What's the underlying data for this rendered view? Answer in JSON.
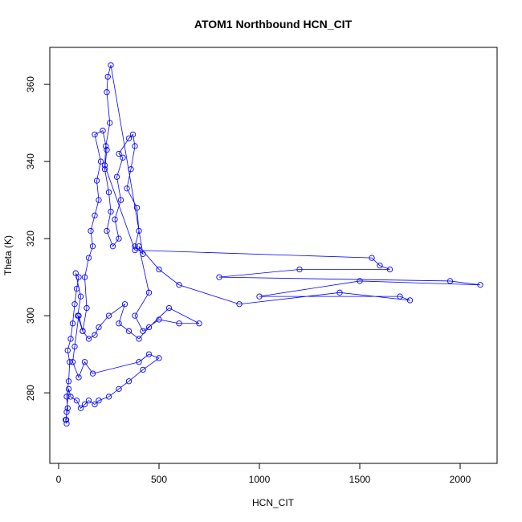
{
  "chart_data": {
    "type": "line",
    "title": "ATOM1 Northbound HCN_CIT",
    "x_label": "HCN_CIT",
    "y_label": "Theta (K)",
    "markers": "open-circle",
    "x": [
      40,
      35,
      45,
      40,
      50,
      55,
      45,
      60,
      70,
      80,
      90,
      100,
      85,
      110,
      95,
      120,
      140,
      130,
      150,
      170,
      160,
      180,
      200,
      190,
      210,
      180,
      220,
      240,
      230,
      250,
      260,
      240,
      270,
      300,
      280,
      310,
      290,
      320,
      300,
      350,
      370,
      380,
      360,
      340,
      390,
      400,
      380,
      420,
      260,
      245,
      240,
      255,
      235,
      230,
      380,
      1560,
      1600,
      1650,
      1200,
      800,
      1950,
      2100,
      1500,
      1000,
      1700,
      1750,
      1400,
      900,
      600,
      500,
      400,
      450,
      380,
      420,
      500,
      600,
      700,
      550,
      450,
      400,
      350,
      300,
      330,
      250,
      200,
      180,
      150,
      120,
      100,
      80,
      70,
      100,
      130,
      170,
      400,
      450,
      500,
      420,
      350,
      300,
      250,
      200,
      180,
      150,
      130,
      110,
      90,
      60,
      50,
      40,
      38
    ],
    "series": [
      {
        "name": "Theta",
        "color": "#0000ff",
        "values": [
          272,
          273,
          276,
          279,
          283,
          288,
          291,
          294,
          298,
          303,
          307,
          310,
          311,
          305,
          300,
          296,
          302,
          310,
          315,
          318,
          322,
          326,
          330,
          335,
          340,
          347,
          348,
          343,
          338,
          332,
          327,
          322,
          318,
          320,
          325,
          330,
          336,
          341,
          342,
          346,
          347,
          344,
          338,
          333,
          328,
          322,
          318,
          316,
          365,
          362,
          358,
          350,
          344,
          339,
          317,
          315,
          313,
          312,
          312,
          310,
          309,
          308,
          309,
          305,
          305,
          304,
          306,
          303,
          308,
          312,
          318,
          306,
          300,
          296,
          299,
          298,
          298,
          302,
          297,
          294,
          296,
          298,
          303,
          300,
          297,
          295,
          294,
          296,
          300,
          292,
          288,
          284,
          288,
          285,
          288,
          290,
          289,
          286,
          283,
          281,
          279,
          278,
          277,
          278,
          277,
          276,
          278,
          279,
          281,
          275,
          273
        ]
      }
    ],
    "xlim": [
      -44,
      2184
    ],
    "ylim": [
      261.7,
      369.6
    ],
    "xticks": [
      0,
      500,
      1000,
      1500,
      2000
    ],
    "yticks": [
      280,
      300,
      320,
      340,
      360
    ]
  }
}
